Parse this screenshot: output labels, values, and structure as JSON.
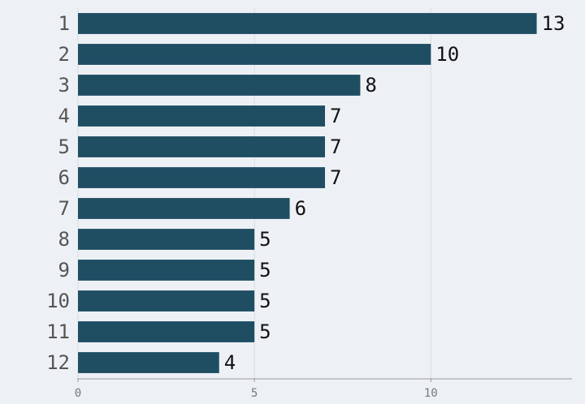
{
  "chart_data": {
    "type": "bar",
    "orientation": "horizontal",
    "categories": [
      "1",
      "2",
      "3",
      "4",
      "5",
      "6",
      "7",
      "8",
      "9",
      "10",
      "11",
      "12"
    ],
    "values": [
      13,
      10,
      8,
      7,
      7,
      7,
      6,
      5,
      5,
      5,
      5,
      4
    ],
    "color": "#1f4e63",
    "xlim": [
      0,
      14
    ],
    "xticks": [
      0,
      5,
      10
    ],
    "grid": true
  }
}
